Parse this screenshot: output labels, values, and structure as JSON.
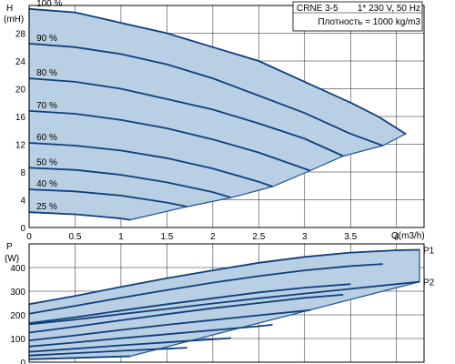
{
  "info": {
    "pump": "CRNE 3-5",
    "supply": "1* 230 V, 50 Hz",
    "density": "Плотность = 1000 kg/m3"
  },
  "chart_data": [
    {
      "type": "line",
      "name": "head",
      "ylabel_line1": "H",
      "ylabel_line2": "(mH)",
      "xlabel": "Q(m3/h)",
      "xlim": [
        0,
        4.3
      ],
      "ylim": [
        0,
        32
      ],
      "x_ticks": [
        0,
        0.5,
        1,
        1.5,
        2,
        2.5,
        3,
        3.5,
        4
      ],
      "x_tick_labels": [
        "0",
        "0.5",
        "1",
        "1.5",
        "2",
        "2.5",
        "3",
        "3.5",
        "4"
      ],
      "y_ticks": [
        0,
        4,
        8,
        12,
        16,
        20,
        24,
        28
      ],
      "y_tick_labels": [
        "0",
        "4",
        "8",
        "12",
        "16",
        "20",
        "24",
        "28"
      ],
      "grid": true,
      "series": [
        {
          "name": "100 %",
          "x": [
            0,
            0.5,
            1,
            1.5,
            2,
            2.5,
            3,
            3.5,
            3.8,
            4.1
          ],
          "y": [
            31.5,
            31,
            29.5,
            28,
            26,
            24,
            21,
            18,
            16,
            13.5
          ]
        },
        {
          "name": "90 %",
          "x": [
            0,
            0.5,
            1,
            1.5,
            2,
            2.5,
            3,
            3.5,
            3.85
          ],
          "y": [
            26.5,
            26,
            25,
            23.5,
            21.5,
            19,
            16.5,
            13.5,
            11.8
          ]
        },
        {
          "name": "80 %",
          "x": [
            0,
            0.5,
            1,
            1.5,
            2,
            2.5,
            3,
            3.42
          ],
          "y": [
            21.5,
            21,
            20,
            18.5,
            17,
            15,
            12.8,
            10.3
          ]
        },
        {
          "name": "70 %",
          "x": [
            0,
            0.5,
            1,
            1.5,
            2,
            2.5,
            3.06
          ],
          "y": [
            16.8,
            16.4,
            15.5,
            14.3,
            12.7,
            10.8,
            8.2
          ]
        },
        {
          "name": "60 %",
          "x": [
            0,
            0.5,
            1,
            1.5,
            2,
            2.5,
            2.65
          ],
          "y": [
            12.2,
            11.8,
            11.1,
            10,
            8.5,
            6.6,
            5.9
          ]
        },
        {
          "name": "50 %",
          "x": [
            0,
            0.5,
            1,
            1.5,
            2,
            2.2
          ],
          "y": [
            8.6,
            8.3,
            7.6,
            6.5,
            5.1,
            4.3
          ]
        },
        {
          "name": "40 %",
          "x": [
            0,
            0.5,
            1,
            1.5,
            1.72
          ],
          "y": [
            5.5,
            5.2,
            4.6,
            3.6,
            3.0
          ]
        },
        {
          "name": "25 %",
          "x": [
            0,
            0.5,
            1,
            1.1
          ],
          "y": [
            2.2,
            1.9,
            1.3,
            1.1
          ]
        }
      ]
    },
    {
      "type": "line",
      "name": "power",
      "ylabel_line1": "P",
      "ylabel_line2": "(W)",
      "xlim": [
        0,
        4.3
      ],
      "ylim": [
        0,
        500
      ],
      "y_ticks": [
        0,
        100,
        200,
        300,
        400
      ],
      "y_tick_labels": [
        "0",
        "100",
        "200",
        "300",
        "400"
      ],
      "grid": true,
      "series": [
        {
          "name": "P1",
          "x": [
            0,
            0.5,
            1,
            1.5,
            2,
            2.5,
            3,
            3.5,
            4,
            4.25
          ],
          "y": [
            245,
            280,
            318,
            355,
            388,
            420,
            445,
            463,
            473,
            475
          ]
        },
        {
          "name": "",
          "x": [
            0,
            0.5,
            1,
            1.5,
            2,
            2.5,
            3,
            3.5,
            3.85
          ],
          "y": [
            205,
            238,
            272,
            305,
            336,
            364,
            388,
            406,
            415
          ]
        },
        {
          "name": "P2",
          "x": [
            0,
            0.5,
            1,
            1.5,
            2,
            2.5,
            3,
            3.5,
            4,
            4.25
          ],
          "y": [
            160,
            180,
            203,
            225,
            248,
            270,
            290,
            310,
            330,
            340
          ]
        },
        {
          "name": "",
          "x": [
            0,
            0.5,
            1,
            1.5,
            2,
            2.5,
            3,
            3.5
          ],
          "y": [
            165,
            190,
            218,
            245,
            270,
            295,
            315,
            330
          ]
        },
        {
          "name": "",
          "x": [
            0,
            0.5,
            1,
            1.5,
            2,
            2.5,
            3,
            3.42
          ],
          "y": [
            125,
            150,
            177,
            203,
            228,
            250,
            272,
            285
          ]
        },
        {
          "name": "",
          "x": [
            0,
            0.5,
            1,
            1.5,
            2,
            2.5,
            3.06
          ],
          "y": [
            92,
            113,
            136,
            158,
            178,
            198,
            220
          ]
        },
        {
          "name": "",
          "x": [
            0,
            0.5,
            1,
            1.5,
            2,
            2.5,
            2.65
          ],
          "y": [
            66,
            83,
            101,
            118,
            135,
            152,
            158
          ]
        },
        {
          "name": "",
          "x": [
            0,
            0.5,
            1,
            1.5,
            2,
            2.2
          ],
          "y": [
            44,
            57,
            71,
            84,
            97,
            102
          ]
        },
        {
          "name": "",
          "x": [
            0,
            0.5,
            1,
            1.5,
            1.72
          ],
          "y": [
            28,
            38,
            48,
            57,
            61
          ]
        },
        {
          "name": "",
          "x": [
            0,
            0.5,
            1,
            1.1
          ],
          "y": [
            12,
            18,
            24,
            25
          ]
        }
      ]
    }
  ]
}
